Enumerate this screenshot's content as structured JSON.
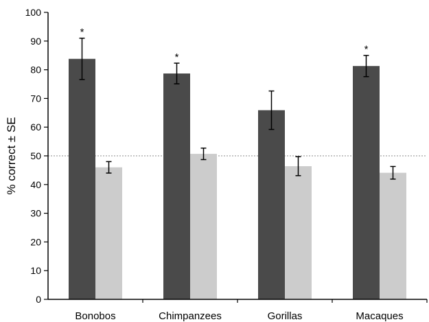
{
  "chart_data": {
    "type": "bar",
    "title": "",
    "xlabel": "",
    "ylabel": "% correct ± SE",
    "ylim": [
      0,
      100
    ],
    "yticks": [
      0,
      10,
      20,
      30,
      40,
      50,
      60,
      70,
      80,
      90,
      100
    ],
    "categories": [
      "Bonobos",
      "Chimpanzees",
      "Gorillas",
      "Macaques"
    ],
    "series": [
      {
        "color": "#4a4a4a",
        "values": [
          83.8,
          78.7,
          65.9,
          81.3
        ],
        "errors": [
          7.2,
          3.6,
          6.7,
          3.7
        ],
        "markers": [
          "*",
          "*",
          "",
          "*"
        ]
      },
      {
        "color": "#cccccc",
        "values": [
          46.0,
          50.7,
          46.4,
          44.1
        ],
        "errors": [
          2.0,
          2.0,
          3.3,
          2.2
        ],
        "markers": [
          "",
          "",
          "",
          ""
        ]
      }
    ],
    "reference_line": {
      "y": 50,
      "style": "dotted"
    },
    "grid": false,
    "legend": "none"
  }
}
